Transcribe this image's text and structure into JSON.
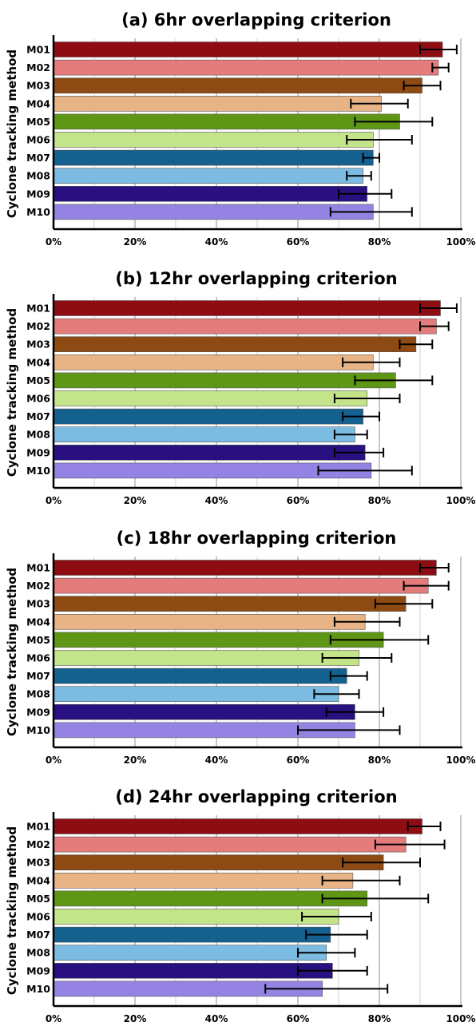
{
  "colors": {
    "M01": "#8e0d12",
    "M02": "#e57c7c",
    "M03": "#8d4a12",
    "M04": "#e8b486",
    "M05": "#5e9716",
    "M06": "#c4e48a",
    "M07": "#14608f",
    "M08": "#7dbce2",
    "M09": "#281080",
    "M10": "#9583e3",
    "grid": "#c8c8c8",
    "axis": "#000000"
  },
  "chart_data": [
    {
      "type": "bar",
      "orientation": "horizontal",
      "title": "(a) 6hr overlapping criterion",
      "ylabel": "Cyclone tracking method",
      "categories": [
        "M01",
        "M02",
        "M03",
        "M04",
        "M05",
        "M06",
        "M07",
        "M08",
        "M09",
        "M10"
      ],
      "values": [
        95.5,
        94.5,
        90.5,
        80.5,
        85,
        78.5,
        78.5,
        76,
        77,
        78.5
      ],
      "error_low": [
        90,
        93,
        86,
        73,
        74,
        72,
        76,
        72,
        70,
        68
      ],
      "error_high": [
        99,
        97,
        95,
        87,
        93,
        88,
        80,
        78,
        83,
        88
      ],
      "xlim": [
        0,
        100
      ],
      "xticks": [
        "0%",
        "20%",
        "40%",
        "60%",
        "80%",
        "100%"
      ],
      "grid": true
    },
    {
      "type": "bar",
      "orientation": "horizontal",
      "title": "(b) 12hr overlapping criterion",
      "ylabel": "Cyclone tracking method",
      "categories": [
        "M01",
        "M02",
        "M03",
        "M04",
        "M05",
        "M06",
        "M07",
        "M08",
        "M09",
        "M10"
      ],
      "values": [
        95,
        94,
        89,
        78.5,
        84,
        77,
        76,
        74,
        76.5,
        78
      ],
      "error_low": [
        90,
        90,
        85,
        71,
        74,
        69,
        71,
        69,
        69,
        65
      ],
      "error_high": [
        99,
        97,
        93,
        85,
        93,
        85,
        80,
        77,
        81,
        88
      ],
      "xlim": [
        0,
        100
      ],
      "xticks": [
        "0%",
        "20%",
        "40%",
        "60%",
        "80%",
        "100%"
      ],
      "grid": true
    },
    {
      "type": "bar",
      "orientation": "horizontal",
      "title": "(c) 18hr overlapping criterion",
      "ylabel": "Cyclone tracking method",
      "categories": [
        "M01",
        "M02",
        "M03",
        "M04",
        "M05",
        "M06",
        "M07",
        "M08",
        "M09",
        "M10"
      ],
      "values": [
        94,
        92,
        86.5,
        76.5,
        81,
        75,
        72,
        70,
        74,
        74
      ],
      "error_low": [
        90,
        86,
        79,
        69,
        68,
        66,
        68,
        64,
        67,
        60
      ],
      "error_high": [
        97,
        97,
        93,
        85,
        92,
        83,
        77,
        75,
        81,
        85
      ],
      "xlim": [
        0,
        100
      ],
      "xticks": [
        "0%",
        "20%",
        "40%",
        "60%",
        "80%",
        "100%"
      ],
      "grid": true
    },
    {
      "type": "bar",
      "orientation": "horizontal",
      "title": "(d) 24hr overlapping criterion",
      "ylabel": "Cyclone tracking method",
      "categories": [
        "M01",
        "M02",
        "M03",
        "M04",
        "M05",
        "M06",
        "M07",
        "M08",
        "M09",
        "M10"
      ],
      "values": [
        90.5,
        86.5,
        81,
        73.5,
        77,
        70,
        68,
        67,
        68.5,
        66
      ],
      "error_low": [
        87,
        79,
        71,
        66,
        66,
        61,
        62,
        60,
        60,
        52
      ],
      "error_high": [
        95,
        96,
        90,
        85,
        92,
        78,
        77,
        74,
        77,
        82
      ],
      "xlim": [
        0,
        100
      ],
      "xticks": [
        "0%",
        "20%",
        "40%",
        "60%",
        "80%",
        "100%"
      ],
      "grid": true
    }
  ]
}
